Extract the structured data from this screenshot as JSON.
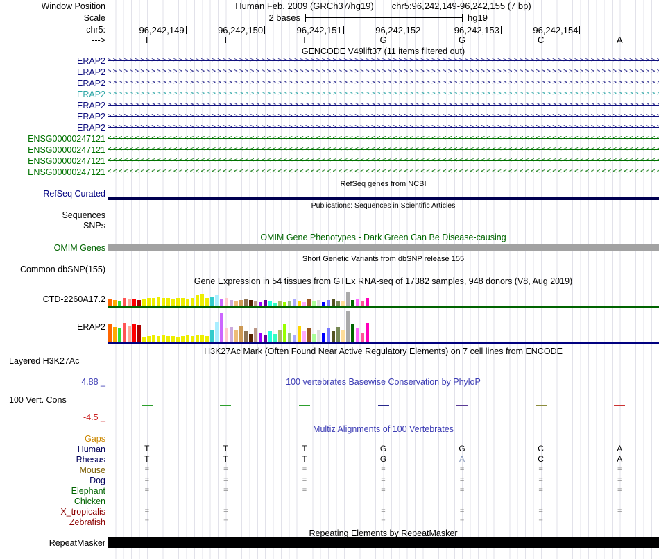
{
  "header": {
    "window_position_label": "Window Position",
    "assembly": "Human Feb. 2009 (GRCh37/hg19)",
    "position": "chr5:96,242,149-96,242,155 (7 bp)",
    "scale_label": "Scale",
    "scale_value": "2 bases",
    "scale_assembly": "hg19",
    "chrom_label": "chr5:",
    "strand_label": "--->",
    "coordinates": [
      "96,242,149",
      "96,242,150",
      "96,242,151",
      "96,242,152",
      "96,242,153",
      "96,242,154"
    ],
    "bases": [
      "T",
      "T",
      "T",
      "G",
      "G",
      "C",
      "A"
    ]
  },
  "gencode": {
    "title": "GENCODE V49lift37 (11 items filtered out)",
    "rows": [
      {
        "label": "ERAP2",
        "color": "#10107e",
        "dir": ">"
      },
      {
        "label": "ERAP2",
        "color": "#10107e",
        "dir": ">"
      },
      {
        "label": "ERAP2",
        "color": "#10107e",
        "dir": ">"
      },
      {
        "label": "ERAP2",
        "color": "#2aa5a5",
        "dir": ">"
      },
      {
        "label": "ERAP2",
        "color": "#10107e",
        "dir": ">"
      },
      {
        "label": "ERAP2",
        "color": "#10107e",
        "dir": ">"
      },
      {
        "label": "ERAP2",
        "color": "#10107e",
        "dir": ">"
      },
      {
        "label": "ENSG00000247121",
        "color": "#007200",
        "dir": "<"
      },
      {
        "label": "ENSG00000247121",
        "color": "#007200",
        "dir": "<"
      },
      {
        "label": "ENSG00000247121",
        "color": "#007200",
        "dir": "<"
      },
      {
        "label": "ENSG00000247121",
        "color": "#007200",
        "dir": "<"
      }
    ]
  },
  "refseq": {
    "title": "RefSeq genes from NCBI",
    "label": "RefSeq Curated",
    "label_color": "#000080",
    "bar_color": "#000050"
  },
  "publications": {
    "title": "Publications: Sequences in Scientific Articles",
    "sequences_label": "Sequences",
    "snps_label": "SNPs"
  },
  "omim": {
    "title": "OMIM Gene Phenotypes - Dark Green Can Be Disease-causing",
    "title_color": "#006400",
    "label": "OMIM Genes",
    "label_color": "#006400",
    "bar_color": "#a2a2a2"
  },
  "dbsnp": {
    "title": "Short Genetic Variants from dbSNP release 155",
    "label": "Common dbSNP(155)"
  },
  "gtex": {
    "title": "Gene Expression in 54 tissues from GTEx RNA-seq of 17382 samples, 948 donors (V8, Aug 2019)",
    "palette": [
      "#FF6600",
      "#FFAA00",
      "#33DD33",
      "#FF5555",
      "#FFAA99",
      "#FF0000",
      "#AA0000",
      "#EEEE00",
      "#EEEE00",
      "#EEEE00",
      "#EEEE00",
      "#EEEE00",
      "#EEEE00",
      "#EEEE00",
      "#EEEE00",
      "#EEEE00",
      "#EEEE00",
      "#EEEE00",
      "#EEEE00",
      "#EEEE00",
      "#EEEE00",
      "#33CCCC",
      "#AAEEFF",
      "#CC66FF",
      "#FFCCCC",
      "#CCAADD",
      "#EEBB77",
      "#CC9955",
      "#8B7355",
      "#552200",
      "#BB9988",
      "#9900FF",
      "#660099",
      "#22FFDD",
      "#33FFC2",
      "#AABB66",
      "#99FF00",
      "#99BB88",
      "#AAAAFF",
      "#FFD700",
      "#FFAAFF",
      "#995522",
      "#AAFF99",
      "#DDDDDD",
      "#0000FF",
      "#7777FF",
      "#555522",
      "#778855",
      "#FFDD99",
      "#AAAAAA",
      "#006600",
      "#FF66FF",
      "#FF5599",
      "#FF00BB"
    ],
    "tracks": [
      {
        "label": "CTD-2260A17.2",
        "baseline_color": "#006400",
        "heights": [
          10,
          9,
          8,
          12,
          10,
          11,
          9,
          11,
          12,
          12,
          13,
          12,
          12,
          11,
          12,
          12,
          11,
          12,
          16,
          18,
          12,
          13,
          16,
          10,
          12,
          9,
          8,
          9,
          10,
          9,
          8,
          6,
          9,
          7,
          5,
          7,
          6,
          8,
          10,
          7,
          6,
          11,
          7,
          9,
          6,
          9,
          10,
          7,
          8,
          20,
          9,
          11,
          7,
          12
        ]
      },
      {
        "label": "ERAP2",
        "baseline_color": "#000080",
        "heights": [
          26,
          22,
          20,
          28,
          24,
          27,
          25,
          8,
          9,
          10,
          9,
          10,
          9,
          9,
          8,
          9,
          10,
          9,
          10,
          11,
          9,
          18,
          30,
          42,
          20,
          22,
          18,
          24,
          16,
          12,
          20,
          14,
          10,
          16,
          12,
          18,
          26,
          14,
          10,
          24,
          16,
          20,
          12,
          18,
          14,
          20,
          16,
          22,
          18,
          45,
          26,
          20,
          14,
          28
        ]
      }
    ]
  },
  "h3k27ac": {
    "title": "H3K27Ac Mark (Often Found Near Active Regulatory Elements) on 7 cell lines from ENCODE",
    "label": "Layered H3K27Ac"
  },
  "conservation": {
    "title": "100 vertebrates Basewise Conservation by PhyloP",
    "title_color": "#3b3bb4",
    "label": "100 Vert. Cons",
    "max_label": "4.88 _",
    "max_color": "#3b3bb4",
    "min_label": "-4.5 _",
    "min_color": "#cc2222",
    "ticks": [
      {
        "col": 0,
        "color": "#2d9f2d"
      },
      {
        "col": 1,
        "color": "#2d9f2d"
      },
      {
        "col": 2,
        "color": "#2d9f2d"
      },
      {
        "col": 3,
        "color": "#28288c"
      },
      {
        "col": 4,
        "color": "#5a3c96"
      },
      {
        "col": 5,
        "color": "#8c8c3c"
      },
      {
        "col": 6,
        "color": "#cc3333"
      }
    ]
  },
  "multiz": {
    "title": "Multiz Alignments of 100 Vertebrates",
    "title_color": "#3b3bb4",
    "eq_color": "#8a8a8a",
    "rows": [
      {
        "label": "Gaps",
        "color": "#cc8800",
        "cells": [
          "",
          "",
          "",
          "",
          "",
          "",
          ""
        ]
      },
      {
        "label": "Human",
        "color": "#00005a",
        "cells": [
          "T",
          "T",
          "T",
          "G",
          "G",
          "C",
          "A"
        ]
      },
      {
        "label": "Rhesus",
        "color": "#00005a",
        "cells": [
          "T",
          "T",
          "T",
          "G",
          "A",
          "C",
          "A"
        ],
        "cell_colors": {
          "4": "#8899bb"
        }
      },
      {
        "label": "Mouse",
        "color": "#7a5c00",
        "cells": [
          "=",
          "=",
          "=",
          "=",
          "=",
          "=",
          "="
        ]
      },
      {
        "label": "Dog",
        "color": "#00005a",
        "cells": [
          "=",
          "=",
          "=",
          "=",
          "=",
          "=",
          "="
        ]
      },
      {
        "label": "Elephant",
        "color": "#006400",
        "cells": [
          "=",
          "=",
          "=",
          "=",
          "=",
          "=",
          "="
        ]
      },
      {
        "label": "Chicken",
        "color": "#006400",
        "cells": [
          "",
          "",
          "",
          "",
          "",
          "",
          ""
        ]
      },
      {
        "label": "X_tropicalis",
        "color": "#8b0000",
        "cells": [
          "=",
          "=",
          "",
          "=",
          "=",
          "=",
          "="
        ]
      },
      {
        "label": "Zebrafish",
        "color": "#8b0000",
        "cells": [
          "=",
          "=",
          "",
          "=",
          "=",
          "=",
          ""
        ]
      }
    ]
  },
  "repeat": {
    "title": "Repeating Elements by RepeatMasker",
    "label": "RepeatMasker",
    "bar_color": "#000000"
  }
}
